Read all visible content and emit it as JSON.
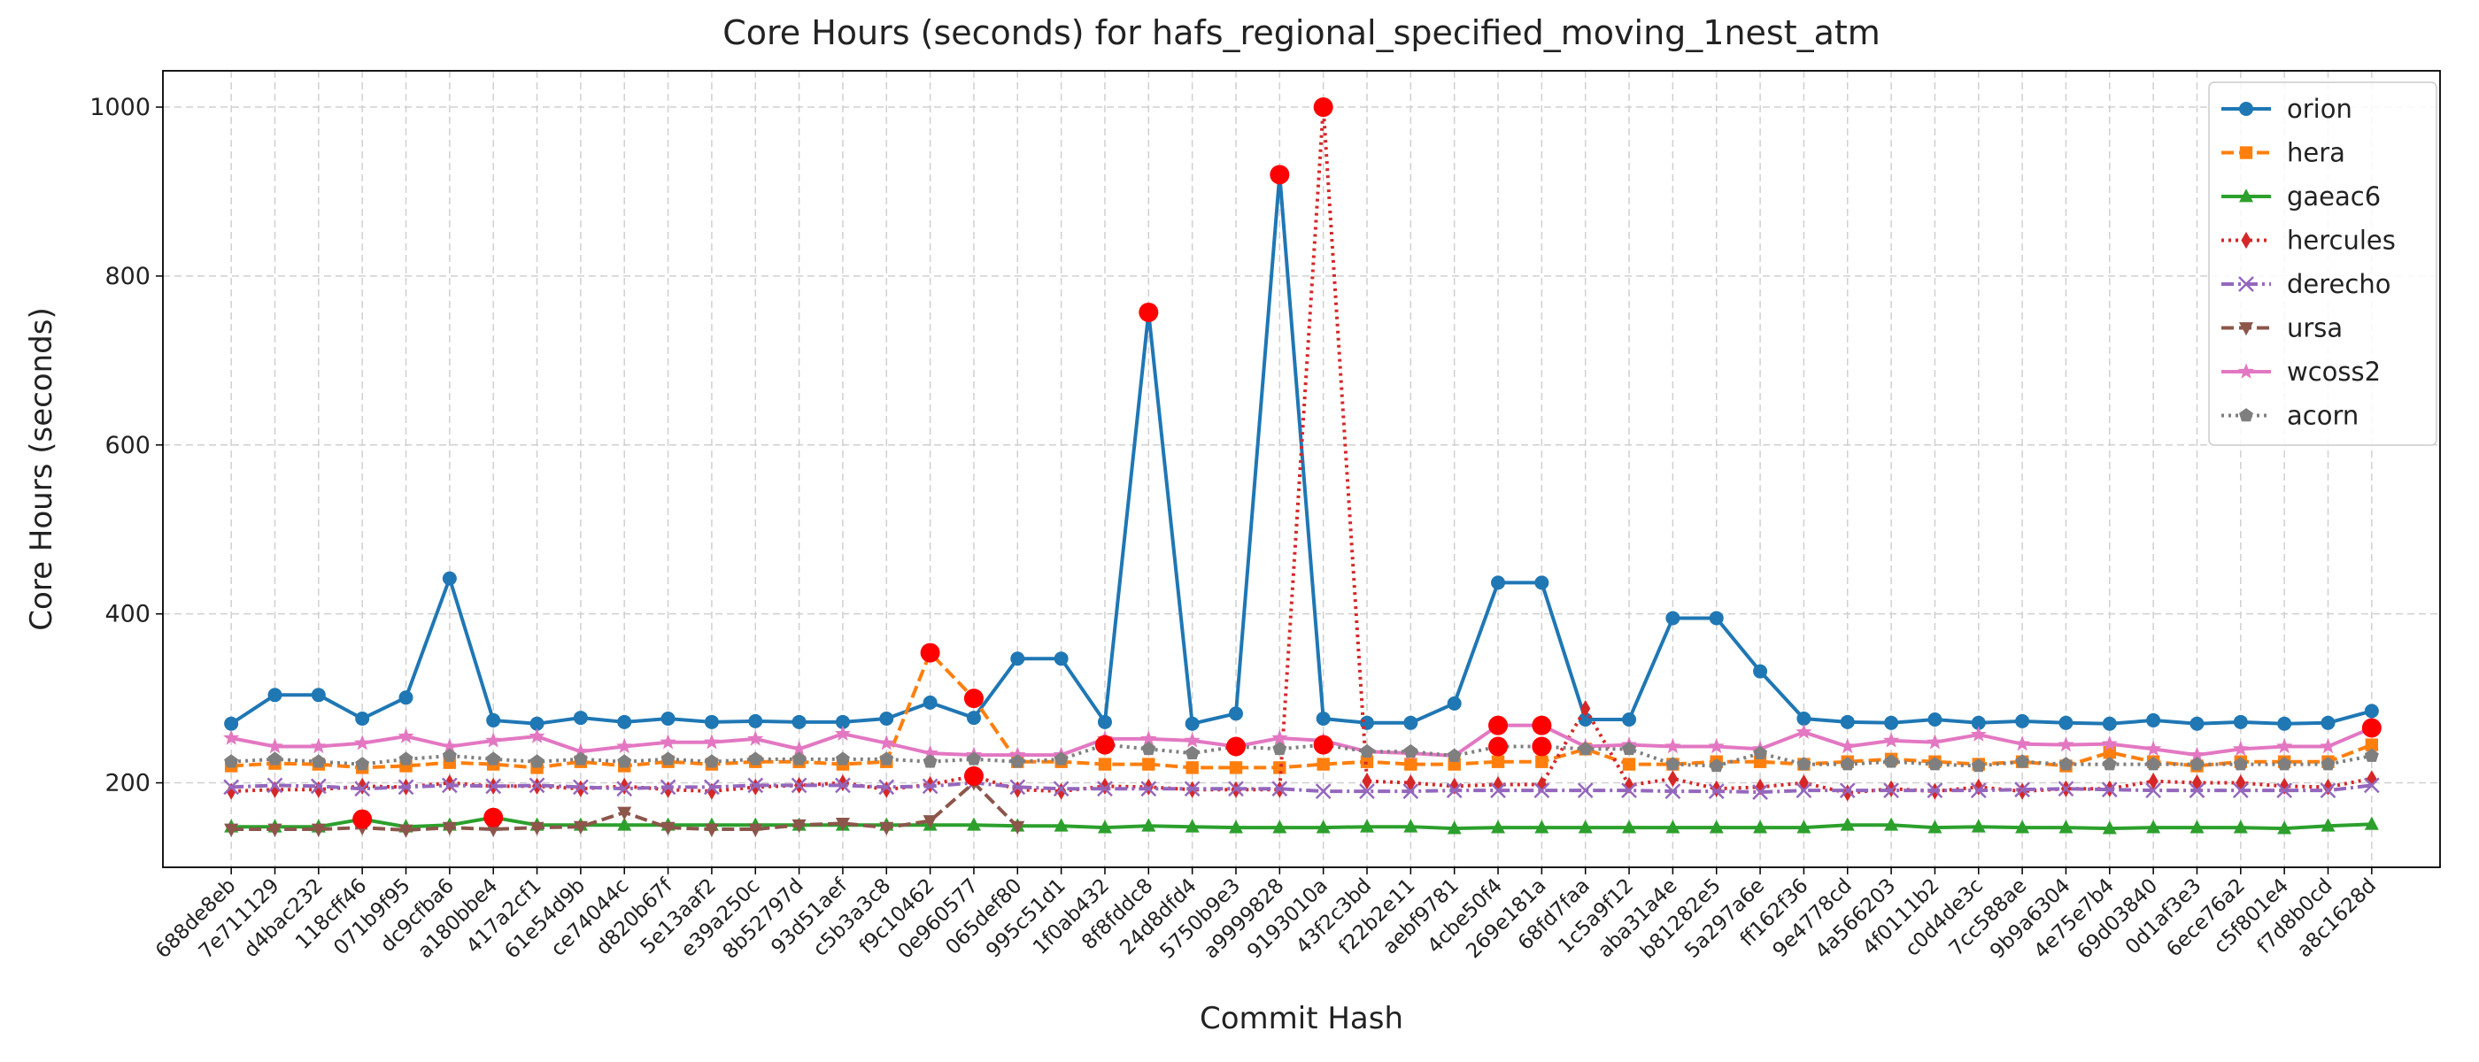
{
  "chart_data": {
    "type": "line",
    "title": "Core Hours (seconds) for hafs_regional_specified_moving_1nest_atm",
    "x_label": "Commit Hash",
    "y_label": "Core Hours (seconds)",
    "categories": [
      "688de8eb",
      "7e711129",
      "d4bac232",
      "118cff46",
      "071b9f95",
      "dc9cfba6",
      "a180bbe4",
      "417a2cf1",
      "61e54d9b",
      "ce74044c",
      "d820b67f",
      "5e13aaf2",
      "e39a250c",
      "8b52797d",
      "93d51aef",
      "c5b3a3c8",
      "f9c10462",
      "0e960577",
      "065def80",
      "995c51d1",
      "1f0ab432",
      "8f8fddc8",
      "24d8dfd4",
      "5750b9e3",
      "a9999828",
      "9193010a",
      "43f2c3bd",
      "f22b2e11",
      "aebf9781",
      "4cbe50f4",
      "269e181a",
      "68fd7faa",
      "1c5a9f12",
      "aba31a4e",
      "b81282e5",
      "5a297a6e",
      "ff162f36",
      "9e4778cd",
      "4a566203",
      "4f0111b2",
      "c0d4de3c",
      "7cc588ae",
      "9b9a6304",
      "4e75e7b4",
      "69d03840",
      "0d1af3e3",
      "6ece76a2",
      "c5f801e4",
      "f7d8b0cd",
      "a8c1628d"
    ],
    "ylim": [
      100,
      1043
    ],
    "yticks": [
      200,
      400,
      600,
      800,
      1000
    ],
    "grid": true,
    "legend": "upper right",
    "highlight_color": "#ff0000",
    "series": [
      {
        "name": "orion",
        "color": "#1f77b4",
        "linestyle": "solid",
        "marker": "circle",
        "highlight": [
          21,
          24
        ],
        "values": [
          270,
          304,
          304,
          276,
          301,
          442,
          274,
          270,
          277,
          272,
          276,
          272,
          273,
          272,
          272,
          276,
          295,
          277,
          347,
          347,
          272,
          757,
          270,
          282,
          920,
          276,
          271,
          271,
          294,
          437,
          437,
          275,
          275,
          395,
          395,
          332,
          276,
          272,
          271,
          275,
          271,
          273,
          271,
          270,
          274,
          270,
          272,
          270,
          271,
          285
        ]
      },
      {
        "name": "hera",
        "color": "#ff7f0e",
        "linestyle": "dashed",
        "marker": "square",
        "highlight": [
          16,
          17
        ],
        "values": [
          220,
          223,
          222,
          218,
          220,
          224,
          222,
          218,
          225,
          220,
          225,
          222,
          225,
          225,
          222,
          225,
          354,
          300,
          225,
          225,
          222,
          222,
          218,
          218,
          218,
          222,
          225,
          222,
          222,
          225,
          225,
          240,
          222,
          222,
          225,
          225,
          222,
          225,
          228,
          225,
          222,
          225,
          220,
          236,
          225,
          220,
          225,
          225,
          225,
          245
        ]
      },
      {
        "name": "gaeac6",
        "color": "#2ca02c",
        "linestyle": "solid",
        "marker": "triangle-up",
        "highlight": [
          3,
          6
        ],
        "values": [
          148,
          148,
          148,
          157,
          148,
          150,
          159,
          150,
          150,
          150,
          150,
          150,
          150,
          150,
          150,
          150,
          150,
          150,
          149,
          149,
          147,
          149,
          148,
          147,
          147,
          147,
          148,
          148,
          146,
          147,
          147,
          147,
          147,
          147,
          147,
          147,
          147,
          150,
          150,
          147,
          148,
          147,
          147,
          146,
          147,
          147,
          147,
          146,
          149,
          151
        ]
      },
      {
        "name": "hercules",
        "color": "#d62728",
        "linestyle": "dotted",
        "marker": "diamond",
        "highlight": [
          17,
          25
        ],
        "values": [
          190,
          192,
          192,
          196,
          195,
          200,
          196,
          196,
          193,
          196,
          192,
          190,
          195,
          197,
          200,
          192,
          198,
          208,
          192,
          190,
          196,
          195,
          192,
          192,
          192,
          1000,
          202,
          200,
          196,
          198,
          198,
          288,
          197,
          205,
          193,
          195,
          200,
          188,
          193,
          190,
          195,
          190,
          193,
          193,
          202,
          200,
          200,
          196,
          195,
          205
        ]
      },
      {
        "name": "derecho",
        "color": "#9467bd",
        "linestyle": "dashdot",
        "marker": "x",
        "highlight": [],
        "values": [
          195,
          197,
          196,
          193,
          195,
          197,
          196,
          197,
          195,
          193,
          195,
          195,
          197,
          197,
          197,
          195,
          196,
          200,
          195,
          193,
          193,
          193,
          193,
          193,
          193,
          190,
          190,
          190,
          191,
          191,
          191,
          191,
          191,
          190,
          190,
          189,
          191,
          191,
          191,
          191,
          191,
          192,
          193,
          192,
          191,
          191,
          191,
          191,
          191,
          197
        ]
      },
      {
        "name": "ursa",
        "color": "#8c564b",
        "linestyle": "dashed",
        "marker": "triangle-down",
        "highlight": [],
        "values": [
          145,
          145,
          145,
          147,
          144,
          147,
          145,
          147,
          148,
          165,
          147,
          145,
          145,
          150,
          152,
          147,
          155,
          200,
          148,
          null,
          null,
          null,
          null,
          null,
          null,
          null,
          null,
          null,
          null,
          null,
          null,
          null,
          null,
          null,
          null,
          null,
          null,
          null,
          null,
          null,
          null,
          null,
          null,
          null,
          null,
          null,
          null,
          null,
          null,
          null
        ]
      },
      {
        "name": "wcoss2",
        "color": "#e377c2",
        "linestyle": "solid",
        "marker": "star",
        "highlight": [
          29,
          30,
          49
        ],
        "values": [
          253,
          243,
          243,
          247,
          255,
          243,
          250,
          255,
          237,
          243,
          248,
          248,
          252,
          240,
          258,
          247,
          235,
          233,
          233,
          233,
          252,
          252,
          250,
          243,
          253,
          250,
          237,
          235,
          232,
          268,
          268,
          243,
          245,
          243,
          243,
          240,
          260,
          243,
          250,
          248,
          257,
          246,
          245,
          246,
          240,
          233,
          240,
          243,
          243,
          265
        ]
      },
      {
        "name": "acorn",
        "color": "#7f7f7f",
        "linestyle": "dotted",
        "marker": "pentagon",
        "highlight": [
          20,
          23,
          25,
          29,
          30
        ],
        "values": [
          225,
          228,
          225,
          222,
          228,
          232,
          228,
          225,
          228,
          225,
          228,
          225,
          228,
          228,
          228,
          228,
          225,
          228,
          225,
          228,
          245,
          240,
          235,
          243,
          240,
          245,
          237,
          237,
          232,
          243,
          243,
          240,
          240,
          222,
          220,
          235,
          222,
          222,
          225,
          222,
          220,
          225,
          222,
          222,
          222,
          222,
          222,
          222,
          222,
          232
        ]
      }
    ]
  }
}
